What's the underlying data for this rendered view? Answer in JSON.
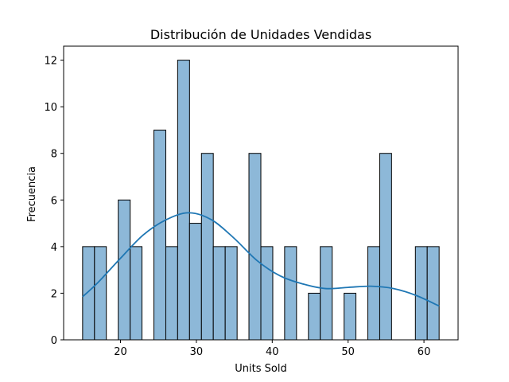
{
  "chart_data": {
    "type": "bar",
    "subtype": "histogram-with-kde",
    "title": "Distribución de Unidades Vendidas",
    "xlabel": "Units Sold",
    "ylabel": "Frecuencia",
    "xlim": [
      12.5,
      64.5
    ],
    "ylim": [
      0,
      12.6
    ],
    "x_ticks": [
      20,
      30,
      40,
      50,
      60
    ],
    "y_ticks": [
      0,
      2,
      4,
      6,
      8,
      10,
      12
    ],
    "grid": false,
    "bar_color": "#8db8d8",
    "bar_edge_color": "#000000",
    "kde_color": "#1f77b4",
    "bins": [
      {
        "start": 15.0,
        "end": 16.57,
        "count": 4
      },
      {
        "start": 16.57,
        "end": 18.13,
        "count": 4
      },
      {
        "start": 18.13,
        "end": 19.7,
        "count": 0
      },
      {
        "start": 19.7,
        "end": 21.27,
        "count": 6
      },
      {
        "start": 21.27,
        "end": 22.83,
        "count": 4
      },
      {
        "start": 22.83,
        "end": 24.4,
        "count": 0
      },
      {
        "start": 24.4,
        "end": 25.97,
        "count": 9
      },
      {
        "start": 25.97,
        "end": 27.53,
        "count": 4
      },
      {
        "start": 27.53,
        "end": 29.1,
        "count": 12
      },
      {
        "start": 29.1,
        "end": 30.67,
        "count": 5
      },
      {
        "start": 30.67,
        "end": 32.23,
        "count": 8
      },
      {
        "start": 32.23,
        "end": 33.8,
        "count": 4
      },
      {
        "start": 33.8,
        "end": 35.37,
        "count": 4
      },
      {
        "start": 35.37,
        "end": 36.93,
        "count": 0
      },
      {
        "start": 36.93,
        "end": 38.5,
        "count": 8
      },
      {
        "start": 38.5,
        "end": 40.07,
        "count": 4
      },
      {
        "start": 40.07,
        "end": 41.63,
        "count": 0
      },
      {
        "start": 41.63,
        "end": 43.2,
        "count": 4
      },
      {
        "start": 43.2,
        "end": 44.77,
        "count": 0
      },
      {
        "start": 44.77,
        "end": 46.33,
        "count": 2
      },
      {
        "start": 46.33,
        "end": 47.9,
        "count": 4
      },
      {
        "start": 47.9,
        "end": 49.47,
        "count": 0
      },
      {
        "start": 49.47,
        "end": 51.03,
        "count": 2
      },
      {
        "start": 51.03,
        "end": 52.6,
        "count": 0
      },
      {
        "start": 52.6,
        "end": 54.17,
        "count": 4
      },
      {
        "start": 54.17,
        "end": 55.73,
        "count": 8
      },
      {
        "start": 55.73,
        "end": 57.3,
        "count": 0
      },
      {
        "start": 57.3,
        "end": 58.87,
        "count": 0
      },
      {
        "start": 58.87,
        "end": 60.43,
        "count": 4
      },
      {
        "start": 60.43,
        "end": 62.0,
        "count": 4
      }
    ],
    "kde_curve": {
      "x": [
        15,
        17,
        20,
        23,
        26,
        29,
        32,
        35,
        38,
        41,
        44,
        47,
        50,
        53,
        56,
        59,
        62
      ],
      "y": [
        1.85,
        2.45,
        3.5,
        4.5,
        5.15,
        5.45,
        5.15,
        4.35,
        3.4,
        2.75,
        2.4,
        2.2,
        2.25,
        2.3,
        2.2,
        1.9,
        1.45
      ]
    }
  }
}
